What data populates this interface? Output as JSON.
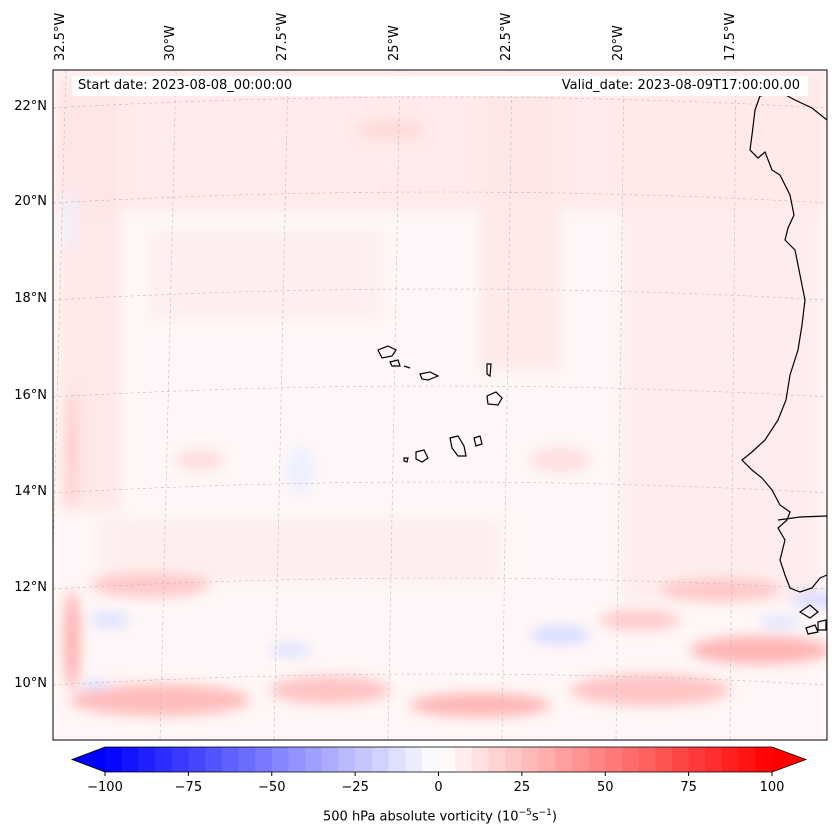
{
  "map": {
    "lon_labels": [
      "32.5°W",
      "30°W",
      "27.5°W",
      "25°W",
      "22.5°W",
      "20°W",
      "17.5°W"
    ],
    "lat_labels": [
      "22°N",
      "20°N",
      "18°N",
      "16°N",
      "14°N",
      "12°N",
      "10°N"
    ],
    "start_date": "Start date: 2023-08-08_00:00:00",
    "valid_date": "Valid_date: 2023-08-09T17:00:00.00",
    "variable": "500 hPa absolute vorticity",
    "units_base": "(10",
    "units_exp1": "−5",
    "units_mid": "s",
    "units_exp2": "−1",
    "units_close": ")"
  },
  "colorbar": {
    "ticks": [
      "−100",
      "−75",
      "−50",
      "−25",
      "0",
      "25",
      "50",
      "75",
      "100"
    ],
    "min": -100,
    "max": 100,
    "neg_color": "#0000ff",
    "pos_color": "#ff0000"
  }
}
